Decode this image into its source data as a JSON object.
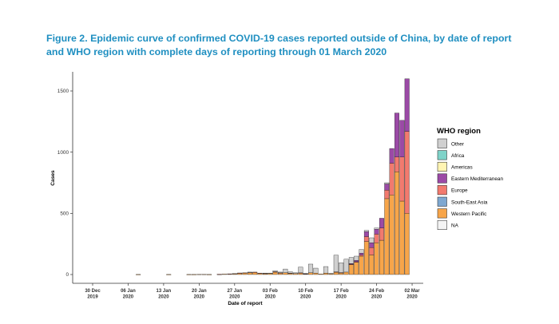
{
  "chart_data": {
    "type": "bar",
    "stacked": true,
    "title": "Figure 2. Epidemic curve of confirmed COVID-19 cases reported outside of China, by date of report and WHO region with complete days of reporting through 01 March 2020",
    "xlabel": "Date of report",
    "ylabel": "Cases",
    "ylim": [
      0,
      1650
    ],
    "yticks": [
      0,
      500,
      1000,
      1500
    ],
    "x_ticks": [
      {
        "line1": "30 Dec",
        "line2": "2019",
        "day": 0
      },
      {
        "line1": "06 Jan",
        "line2": "2020",
        "day": 7
      },
      {
        "line1": "13 Jan",
        "line2": "2020",
        "day": 14
      },
      {
        "line1": "20 Jan",
        "line2": "2020",
        "day": 21
      },
      {
        "line1": "27 Jan",
        "line2": "2020",
        "day": 28
      },
      {
        "line1": "03 Feb",
        "line2": "2020",
        "day": 35
      },
      {
        "line1": "10 Feb",
        "line2": "2020",
        "day": 42
      },
      {
        "line1": "17 Feb",
        "line2": "2020",
        "day": 49
      },
      {
        "line1": "24 Feb",
        "line2": "2020",
        "day": 56
      },
      {
        "line1": "02 Mar",
        "line2": "2020",
        "day": 63
      }
    ],
    "legend": {
      "title": "WHO region",
      "entries": [
        {
          "name": "Other",
          "color": "#d0d0d0"
        },
        {
          "name": "Africa",
          "color": "#7fd3c9"
        },
        {
          "name": "Americas",
          "color": "#fff4b3"
        },
        {
          "name": "Eastern Mediterranean",
          "color": "#9b4aa6"
        },
        {
          "name": "Europe",
          "color": "#f27a6e"
        },
        {
          "name": "South-East Asia",
          "color": "#7fa8d1"
        },
        {
          "name": "Western Pacific",
          "color": "#f7a54a"
        },
        {
          "name": "NA",
          "color": "#f4f4f4"
        }
      ]
    },
    "stack_order": [
      "Western Pacific",
      "South-East Asia",
      "Europe",
      "Eastern Mediterranean",
      "Americas",
      "Africa",
      "Other",
      "NA"
    ],
    "days": [
      {
        "day": 9,
        "values": {
          "Western Pacific": 1
        }
      },
      {
        "day": 15,
        "values": {
          "Western Pacific": 1
        }
      },
      {
        "day": 19,
        "values": {
          "Western Pacific": 1
        }
      },
      {
        "day": 20,
        "values": {
          "Western Pacific": 1
        }
      },
      {
        "day": 21,
        "values": {
          "Western Pacific": 2
        }
      },
      {
        "day": 22,
        "values": {
          "Western Pacific": 2
        }
      },
      {
        "day": 23,
        "values": {
          "Western Pacific": 1
        }
      },
      {
        "day": 25,
        "values": {
          "Western Pacific": 2,
          "Europe": 1
        }
      },
      {
        "day": 26,
        "values": {
          "Western Pacific": 4
        }
      },
      {
        "day": 27,
        "values": {
          "Western Pacific": 5,
          "Europe": 1
        }
      },
      {
        "day": 28,
        "values": {
          "Western Pacific": 8,
          "Other": 1
        }
      },
      {
        "day": 29,
        "values": {
          "Western Pacific": 10,
          "Europe": 3
        }
      },
      {
        "day": 30,
        "values": {
          "Western Pacific": 12,
          "Europe": 3
        }
      },
      {
        "day": 31,
        "values": {
          "Western Pacific": 14,
          "Europe": 4,
          "Other": 2
        }
      },
      {
        "day": 32,
        "values": {
          "Western Pacific": 17,
          "Europe": 3
        }
      },
      {
        "day": 33,
        "values": {
          "Western Pacific": 9,
          "Europe": 3
        }
      },
      {
        "day": 34,
        "values": {
          "Western Pacific": 8,
          "Europe": 2,
          "Other": 2
        }
      },
      {
        "day": 35,
        "values": {
          "Western Pacific": 10,
          "Other": 2
        }
      },
      {
        "day": 36,
        "values": {
          "Western Pacific": 20,
          "Europe": 3,
          "Other": 8
        }
      },
      {
        "day": 37,
        "values": {
          "Western Pacific": 12,
          "Europe": 2,
          "Other": 6
        }
      },
      {
        "day": 38,
        "values": {
          "Western Pacific": 15,
          "Other": 30
        }
      },
      {
        "day": 39,
        "values": {
          "Western Pacific": 10,
          "Europe": 2,
          "Other": 10
        }
      },
      {
        "day": 40,
        "values": {
          "Western Pacific": 8,
          "Other": 6
        }
      },
      {
        "day": 41,
        "values": {
          "Western Pacific": 12,
          "Europe": 2,
          "Other": 46
        }
      },
      {
        "day": 42,
        "values": {
          "Western Pacific": 5,
          "Europe": 1,
          "Other": 4
        }
      },
      {
        "day": 43,
        "values": {
          "Western Pacific": 15,
          "Other": 70
        }
      },
      {
        "day": 44,
        "values": {
          "Western Pacific": 12,
          "Other": 40
        }
      },
      {
        "day": 45,
        "values": {
          "Western Pacific": 5
        }
      },
      {
        "day": 46,
        "values": {
          "Western Pacific": 12,
          "Other": 53
        }
      },
      {
        "day": 47,
        "values": {
          "Western Pacific": 8,
          "Other": 2
        }
      },
      {
        "day": 48,
        "values": {
          "Western Pacific": 20,
          "Europe": 2,
          "Other": 136
        }
      },
      {
        "day": 49,
        "values": {
          "Western Pacific": 15,
          "Europe": 1,
          "Other": 80
        }
      },
      {
        "day": 50,
        "values": {
          "Western Pacific": 20,
          "Other": 105
        }
      },
      {
        "day": 51,
        "values": {
          "Western Pacific": 80,
          "Europe": 5,
          "Eastern Mediterranean": 5,
          "Other": 50
        }
      },
      {
        "day": 52,
        "values": {
          "Western Pacific": 100,
          "Europe": 5,
          "Eastern Mediterranean": 10,
          "Other": 35
        }
      },
      {
        "day": 53,
        "values": {
          "Western Pacific": 150,
          "Europe": 10,
          "Eastern Mediterranean": 15,
          "Other": 30
        }
      },
      {
        "day": 54,
        "values": {
          "Western Pacific": 270,
          "Europe": 40,
          "Eastern Mediterranean": 40,
          "Other": 10
        }
      },
      {
        "day": 55,
        "values": {
          "Western Pacific": 160,
          "Europe": 60,
          "Eastern Mediterranean": 40,
          "Other": 40
        }
      },
      {
        "day": 56,
        "values": {
          "Western Pacific": 260,
          "Europe": 70,
          "Eastern Mediterranean": 40,
          "Other": 10
        }
      },
      {
        "day": 57,
        "values": {
          "Western Pacific": 280,
          "Europe": 100,
          "Eastern Mediterranean": 80
        }
      },
      {
        "day": 58,
        "values": {
          "Western Pacific": 620,
          "Europe": 70,
          "Eastern Mediterranean": 50,
          "Other": 10
        }
      },
      {
        "day": 59,
        "values": {
          "Western Pacific": 650,
          "Europe": 260,
          "Eastern Mediterranean": 120
        }
      },
      {
        "day": 60,
        "values": {
          "Western Pacific": 840,
          "Europe": 120,
          "Eastern Mediterranean": 360
        }
      },
      {
        "day": 61,
        "values": {
          "Western Pacific": 600,
          "Europe": 360,
          "Eastern Mediterranean": 300
        }
      },
      {
        "day": 62,
        "values": {
          "Western Pacific": 500,
          "Europe": 670,
          "Eastern Mediterranean": 430
        }
      }
    ]
  }
}
